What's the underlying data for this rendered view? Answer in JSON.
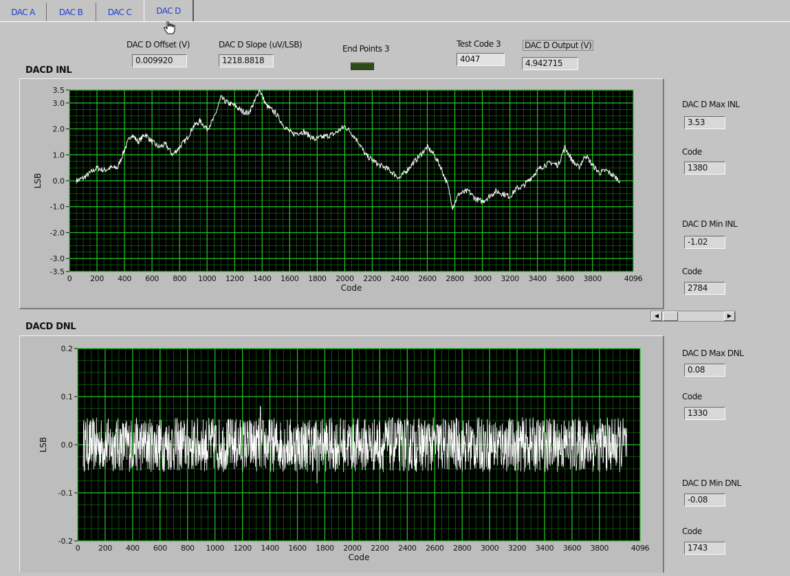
{
  "tabs": [
    {
      "label": "DAC A"
    },
    {
      "label": "DAC B"
    },
    {
      "label": "DAC C"
    },
    {
      "label": "DAC D",
      "active": true
    }
  ],
  "header": {
    "offset_label": "DAC D Offset (V)",
    "offset_value": "0.009920",
    "slope_label": "DAC D Slope (uV/LSB)",
    "slope_value": "1218.8818",
    "endpoints_label": "End Points 3",
    "endpoints_led": "off",
    "testcode_label": "Test Code 3",
    "testcode_value": "4047",
    "output_label": "DAC D Output (V)",
    "output_value": "4.942715"
  },
  "inl": {
    "title": "DACD INL",
    "max_label": "DAC D Max INL",
    "max_value": "3.53",
    "max_code_label": "Code",
    "max_code_value": "1380",
    "min_label": "DAC D Min INL",
    "min_value": "-1.02",
    "min_code_label": "Code",
    "min_code_value": "2784"
  },
  "dnl": {
    "title": "DACD DNL",
    "max_label": "DAC D Max DNL",
    "max_value": "0.08",
    "max_code_label": "Code",
    "max_code_value": "1330",
    "min_label": "DAC D Min DNL",
    "min_value": "-0.08",
    "min_code_label": "Code",
    "min_code_value": "1743"
  },
  "colors": {
    "plot_bg": "#000000",
    "grid": "#22cc22",
    "trace": "#ffffff",
    "tab_text": "#1f3fd0",
    "panel": "#c4c4c4"
  },
  "chart_data": [
    {
      "type": "line",
      "title": "DACD INL",
      "xlabel": "Code",
      "ylabel": "LSB",
      "xlim": [
        0,
        4096
      ],
      "ylim": [
        -3.5,
        3.5
      ],
      "x_ticks": [
        0,
        200,
        400,
        600,
        800,
        1000,
        1200,
        1400,
        1600,
        1800,
        2000,
        2200,
        2400,
        2600,
        2800,
        3000,
        3200,
        3400,
        3600,
        3800,
        4096
      ],
      "y_ticks": [
        {
          "value": 3.5,
          "label": "3.5"
        },
        {
          "value": 3.0,
          "label": "3.0"
        },
        {
          "value": 2.0,
          "label": "2.0"
        },
        {
          "value": 1.0,
          "label": "1.0"
        },
        {
          "value": 0.0,
          "label": "0.0"
        },
        {
          "value": -1.0,
          "label": "-1.0"
        },
        {
          "value": -2.0,
          "label": "-2.0"
        },
        {
          "value": -3.0,
          "label": "-3.0"
        },
        {
          "value": -3.5,
          "label": "-3.5"
        }
      ],
      "grid": true,
      "series": [
        {
          "x": [
            50,
            100,
            150,
            200,
            250,
            300,
            350,
            400,
            450,
            500,
            550,
            600,
            650,
            700,
            750,
            800,
            850,
            900,
            950,
            1000,
            1050,
            1100,
            1150,
            1200,
            1250,
            1300,
            1350,
            1380,
            1430,
            1500,
            1560,
            1620,
            1700,
            1780,
            1850,
            1920,
            2000,
            2040,
            2100,
            2150,
            2200,
            2250,
            2300,
            2350,
            2400,
            2450,
            2500,
            2550,
            2600,
            2650,
            2700,
            2750,
            2784,
            2830,
            2900,
            2950,
            3000,
            3050,
            3100,
            3150,
            3200,
            3250,
            3300,
            3350,
            3400,
            3450,
            3500,
            3550,
            3600,
            3650,
            3700,
            3750,
            3800,
            3850,
            3900,
            3950,
            4000
          ],
          "values": [
            0.0,
            0.1,
            0.3,
            0.5,
            0.4,
            0.5,
            0.5,
            1.2,
            1.8,
            1.5,
            1.8,
            1.5,
            1.3,
            1.4,
            1.0,
            1.3,
            1.6,
            2.1,
            2.3,
            2.0,
            2.4,
            3.2,
            3.0,
            2.9,
            2.7,
            2.6,
            3.1,
            3.53,
            2.9,
            2.6,
            2.1,
            1.8,
            1.9,
            1.6,
            1.7,
            1.8,
            2.1,
            1.9,
            1.5,
            1.0,
            0.8,
            0.6,
            0.5,
            0.3,
            0.1,
            0.4,
            0.7,
            1.0,
            1.3,
            1.0,
            0.5,
            -0.2,
            -1.02,
            -0.5,
            -0.4,
            -0.7,
            -0.8,
            -0.6,
            -0.4,
            -0.5,
            -0.6,
            -0.3,
            -0.2,
            0.1,
            0.4,
            0.6,
            0.7,
            0.6,
            1.3,
            0.8,
            0.5,
            1.0,
            0.6,
            0.3,
            0.4,
            0.2,
            0.0
          ]
        }
      ]
    },
    {
      "type": "line",
      "title": "DACD DNL",
      "xlabel": "Code",
      "ylabel": "LSB",
      "xlim": [
        0,
        4096
      ],
      "ylim": [
        -0.2,
        0.2
      ],
      "x_ticks": [
        0,
        200,
        400,
        600,
        800,
        1000,
        1200,
        1400,
        1600,
        1800,
        2000,
        2200,
        2400,
        2600,
        2800,
        3000,
        3200,
        3400,
        3600,
        3800,
        4096
      ],
      "y_ticks": [
        {
          "value": 0.2,
          "label": "0.2"
        },
        {
          "value": 0.1,
          "label": "0.1"
        },
        {
          "value": 0.0,
          "label": "0.0"
        },
        {
          "value": -0.1,
          "label": "-0.1"
        },
        {
          "value": -0.2,
          "label": "-0.2"
        }
      ],
      "grid": true,
      "series": [
        {
          "x_range": [
            40,
            4000
          ],
          "noise_band": [
            -0.06,
            0.06
          ],
          "max": {
            "x": 1330,
            "y": 0.08
          },
          "min": {
            "x": 1743,
            "y": -0.08
          }
        }
      ]
    }
  ]
}
